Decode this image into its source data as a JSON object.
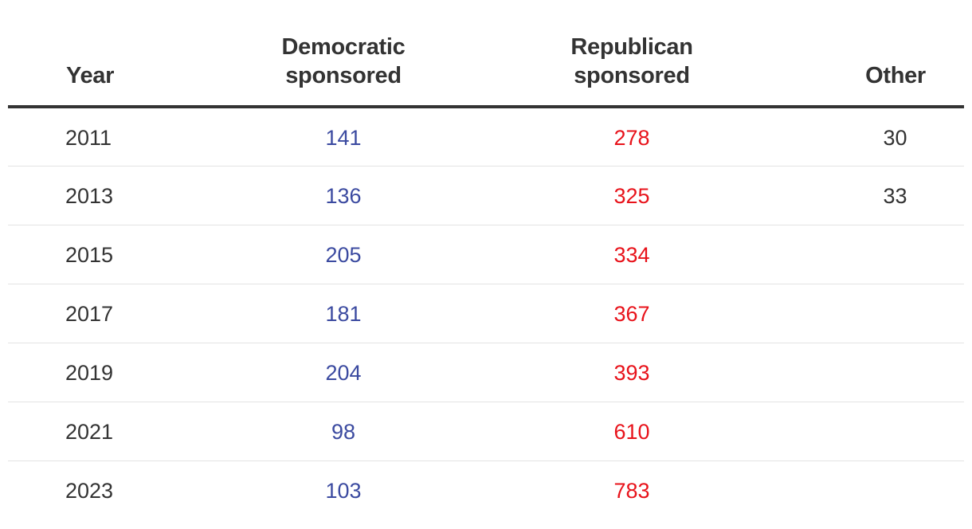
{
  "colors": {
    "democratic": "#3b4aa0",
    "republican": "#e8121a",
    "text": "#333333"
  },
  "chart_data": {
    "type": "table",
    "columns": [
      {
        "key": "year",
        "label_lines": [
          "Year"
        ]
      },
      {
        "key": "dem",
        "label_lines": [
          "Democratic",
          "sponsored"
        ]
      },
      {
        "key": "rep",
        "label_lines": [
          "Republican",
          "sponsored"
        ]
      },
      {
        "key": "other",
        "label_lines": [
          "Other"
        ]
      }
    ],
    "rows": [
      {
        "year": "2011",
        "dem": "141",
        "rep": "278",
        "other": "30"
      },
      {
        "year": "2013",
        "dem": "136",
        "rep": "325",
        "other": "33"
      },
      {
        "year": "2015",
        "dem": "205",
        "rep": "334",
        "other": ""
      },
      {
        "year": "2017",
        "dem": "181",
        "rep": "367",
        "other": ""
      },
      {
        "year": "2019",
        "dem": "204",
        "rep": "393",
        "other": ""
      },
      {
        "year": "2021",
        "dem": "98",
        "rep": "610",
        "other": ""
      },
      {
        "year": "2023",
        "dem": "103",
        "rep": "783",
        "other": ""
      }
    ]
  }
}
